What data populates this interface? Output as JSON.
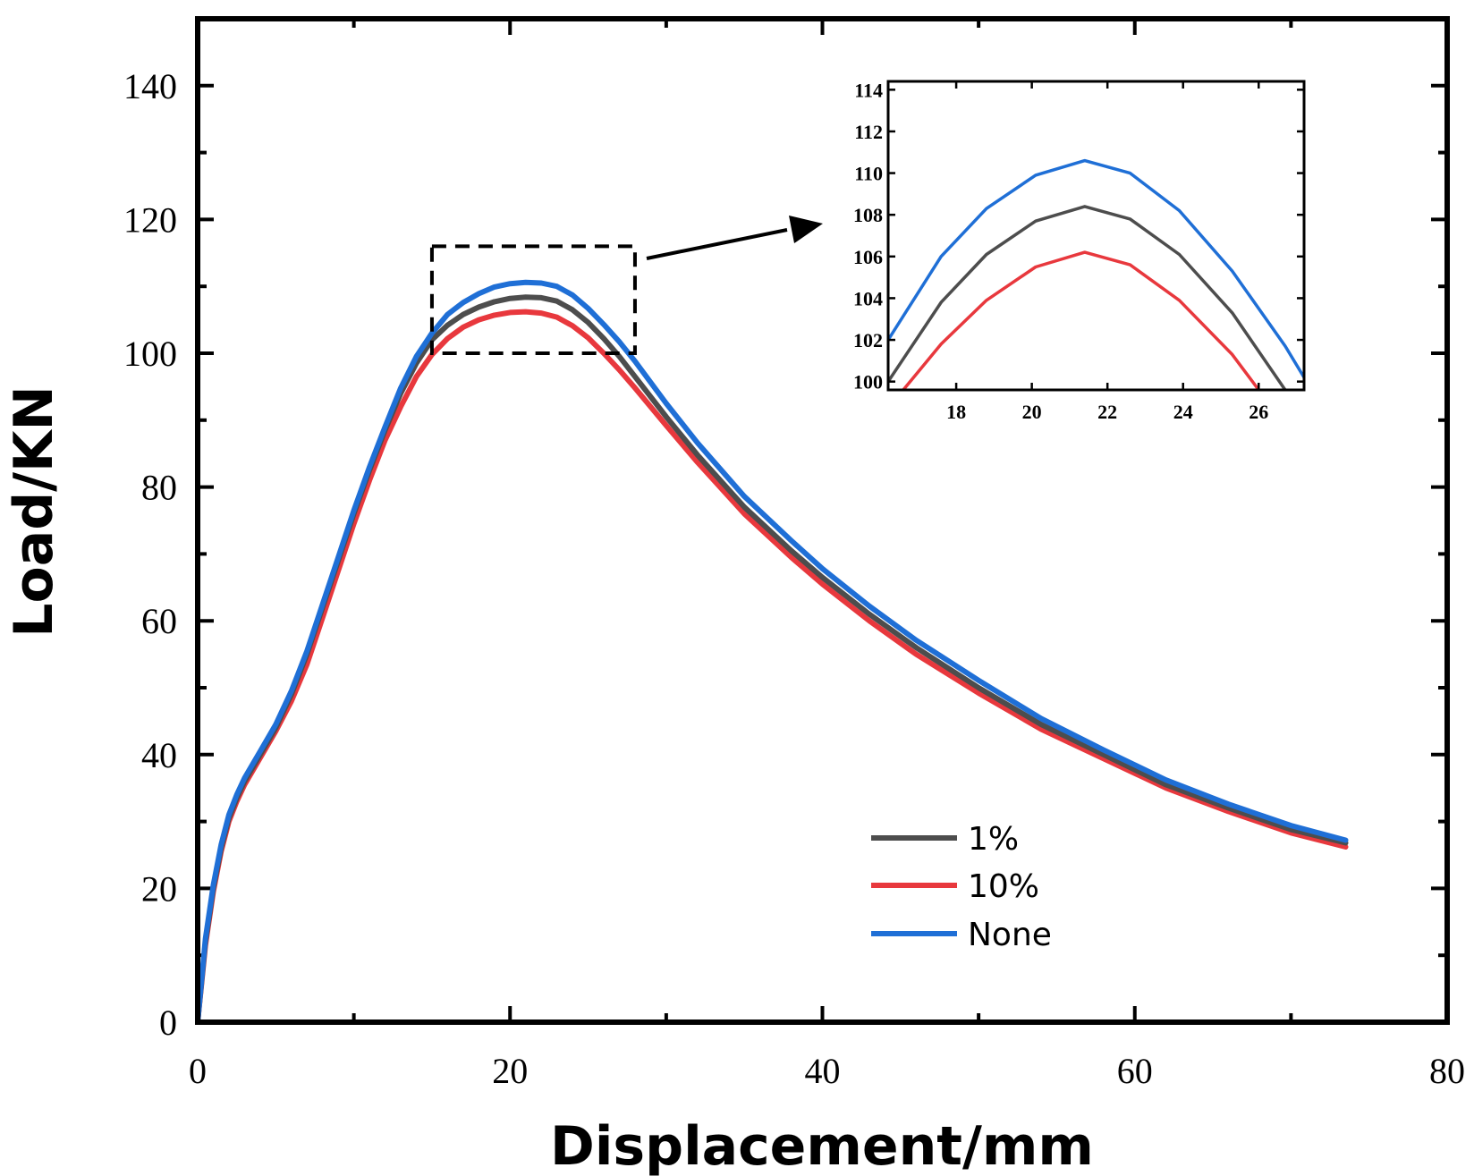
{
  "chart_data": {
    "type": "line",
    "title": "",
    "xlabel": "Displacement/mm",
    "ylabel": "Load/KN",
    "xlim": [
      0,
      80
    ],
    "ylim": [
      0,
      150
    ],
    "xticks": [
      0,
      20,
      40,
      60,
      80
    ],
    "yticks": [
      0,
      20,
      40,
      60,
      80,
      100,
      120,
      140
    ],
    "x_tick_labels": [
      "0",
      "20",
      "40",
      "60",
      "80"
    ],
    "y_tick_labels": [
      "0",
      "20",
      "40",
      "60",
      "80",
      "100",
      "120",
      "140"
    ],
    "grid": false,
    "legend_position": "bottom-right",
    "series": [
      {
        "name": "1%",
        "color": "#4d4d4d",
        "x": [
          0,
          0.5,
          1,
          1.5,
          2,
          2.5,
          3,
          4,
          5,
          6,
          7,
          8,
          9,
          10,
          11,
          12,
          13,
          14,
          15,
          16,
          17,
          18,
          19,
          20,
          21,
          22,
          23,
          24,
          25,
          26,
          27,
          28,
          30,
          32,
          35,
          38,
          40,
          43,
          46,
          50,
          54,
          58,
          62,
          66,
          70,
          73.5
        ],
        "y": [
          0,
          12,
          20,
          26,
          30.5,
          33.5,
          36,
          40,
          44,
          49,
          55,
          62,
          69,
          76,
          82.5,
          88.5,
          94,
          98.5,
          102,
          104.2,
          105.8,
          106.9,
          107.7,
          108.2,
          108.4,
          108.3,
          107.8,
          106.5,
          104.6,
          102.2,
          99.5,
          96.5,
          90.5,
          84.8,
          77,
          70.5,
          66.5,
          61,
          56,
          50,
          44.5,
          40,
          35.5,
          32,
          28.8,
          26.8
        ]
      },
      {
        "name": "10%",
        "color": "#e8383d",
        "x": [
          0,
          0.5,
          1,
          1.5,
          2,
          2.5,
          3,
          4,
          5,
          6,
          7,
          8,
          9,
          10,
          11,
          12,
          13,
          14,
          15,
          16,
          17,
          18,
          19,
          20,
          21,
          22,
          23,
          24,
          25,
          26,
          27,
          28,
          30,
          32,
          35,
          38,
          40,
          43,
          46,
          50,
          54,
          58,
          62,
          66,
          70,
          73.5
        ],
        "y": [
          0,
          11.5,
          19.5,
          25.5,
          30,
          33,
          35.5,
          39.5,
          43.5,
          48,
          53.5,
          60.5,
          67.5,
          74.5,
          81,
          87,
          92,
          96.5,
          99.8,
          102.2,
          103.9,
          105,
          105.7,
          106.1,
          106.2,
          106.0,
          105.4,
          104.1,
          102.3,
          100,
          97.5,
          94.8,
          89.2,
          83.7,
          76,
          69.5,
          65.5,
          60,
          55,
          49.2,
          43.8,
          39.4,
          35,
          31.5,
          28.3,
          26.2
        ]
      },
      {
        "name": "None",
        "color": "#1f6fd6",
        "x": [
          0,
          0.5,
          1,
          1.5,
          2,
          2.5,
          3,
          4,
          5,
          6,
          7,
          8,
          9,
          10,
          11,
          12,
          13,
          14,
          15,
          16,
          17,
          18,
          19,
          20,
          21,
          22,
          23,
          24,
          25,
          26,
          27,
          28,
          30,
          32,
          35,
          38,
          40,
          43,
          46,
          50,
          54,
          58,
          62,
          66,
          70,
          73.5
        ],
        "y": [
          0,
          12.5,
          20.5,
          26.5,
          31,
          34,
          36.5,
          40.5,
          44.5,
          49.5,
          55.5,
          62.5,
          69.5,
          76.5,
          83,
          89,
          94.8,
          99.5,
          103,
          105.8,
          107.6,
          108.9,
          109.9,
          110.4,
          110.6,
          110.5,
          110,
          108.7,
          106.7,
          104.3,
          101.7,
          98.8,
          92.5,
          86.6,
          78.6,
          72,
          67.8,
          62.2,
          57.1,
          51.1,
          45.4,
          40.7,
          36.2,
          32.6,
          29.4,
          27.2
        ]
      }
    ],
    "inset": {
      "xlim": [
        16.2,
        27.2
      ],
      "ylim": [
        99.6,
        114.4
      ],
      "xticks": [
        18,
        20,
        22,
        24,
        26
      ],
      "yticks": [
        100,
        102,
        104,
        106,
        108,
        110,
        112,
        114
      ],
      "x_tick_labels": [
        "18",
        "20",
        "22",
        "24",
        "26"
      ],
      "y_tick_labels": [
        "100",
        "102",
        "104",
        "106",
        "108",
        "110",
        "112",
        "114"
      ],
      "series": [
        {
          "name": "1%",
          "x": [
            16.2,
            17.6,
            18.8,
            20.1,
            21.4,
            22.6,
            23.9,
            25.3,
            26.7
          ],
          "y": [
            100,
            103.8,
            106.1,
            107.7,
            108.4,
            107.8,
            106.1,
            103.3,
            99.6
          ]
        },
        {
          "name": "10%",
          "x": [
            16.6,
            17.6,
            18.8,
            20.1,
            21.4,
            22.6,
            23.9,
            25.3,
            26.0
          ],
          "y": [
            99.6,
            101.8,
            103.9,
            105.5,
            106.2,
            105.6,
            103.9,
            101.3,
            99.6
          ]
        },
        {
          "name": "None",
          "x": [
            16.2,
            17.6,
            18.8,
            20.1,
            21.4,
            22.6,
            23.9,
            25.3,
            26.7,
            27.2
          ],
          "y": [
            102,
            106,
            108.3,
            109.9,
            110.6,
            110.0,
            108.2,
            105.3,
            101.7,
            100.2
          ]
        }
      ]
    },
    "zoom_region": {
      "x": [
        15,
        28
      ],
      "y": [
        100,
        116
      ]
    }
  }
}
